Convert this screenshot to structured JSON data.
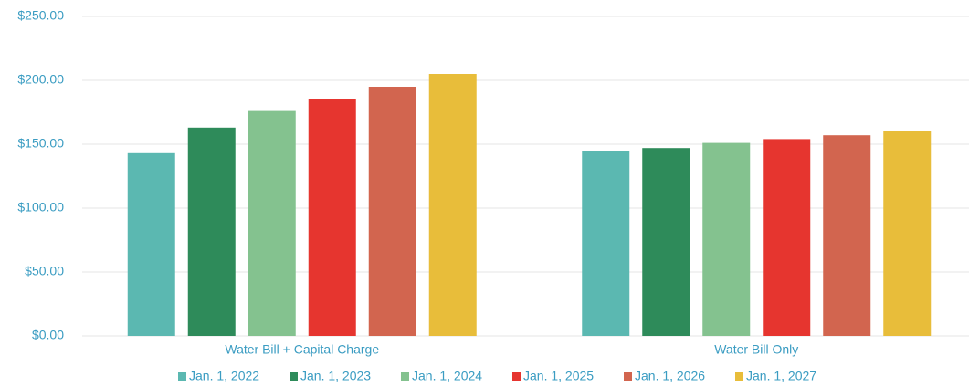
{
  "chart_data": {
    "type": "bar",
    "categories": [
      "Water Bill + Capital Charge",
      "Water Bill Only"
    ],
    "series": [
      {
        "name": "Jan. 1, 2022",
        "color": "#5bb8b1",
        "values": [
          143,
          145
        ]
      },
      {
        "name": "Jan. 1, 2023",
        "color": "#2e8b5a",
        "values": [
          163,
          147
        ]
      },
      {
        "name": "Jan. 1, 2024",
        "color": "#84c28f",
        "values": [
          176,
          151
        ]
      },
      {
        "name": "Jan. 1, 2025",
        "color": "#e6352f",
        "values": [
          185,
          154
        ]
      },
      {
        "name": "Jan. 1, 2026",
        "color": "#d2654f",
        "values": [
          195,
          157
        ]
      },
      {
        "name": "Jan. 1, 2027",
        "color": "#e8bd3a",
        "values": [
          205,
          160
        ]
      }
    ],
    "ylim": [
      0,
      250
    ],
    "yticks": [
      {
        "value": 0,
        "label": "$0.00"
      },
      {
        "value": 50,
        "label": "$50.00"
      },
      {
        "value": 100,
        "label": "$100.00"
      },
      {
        "value": 150,
        "label": "$150.00"
      },
      {
        "value": 200,
        "label": "$200.00"
      },
      {
        "value": 250,
        "label": "$250.00"
      }
    ],
    "grid": true,
    "legend": "bottom"
  }
}
